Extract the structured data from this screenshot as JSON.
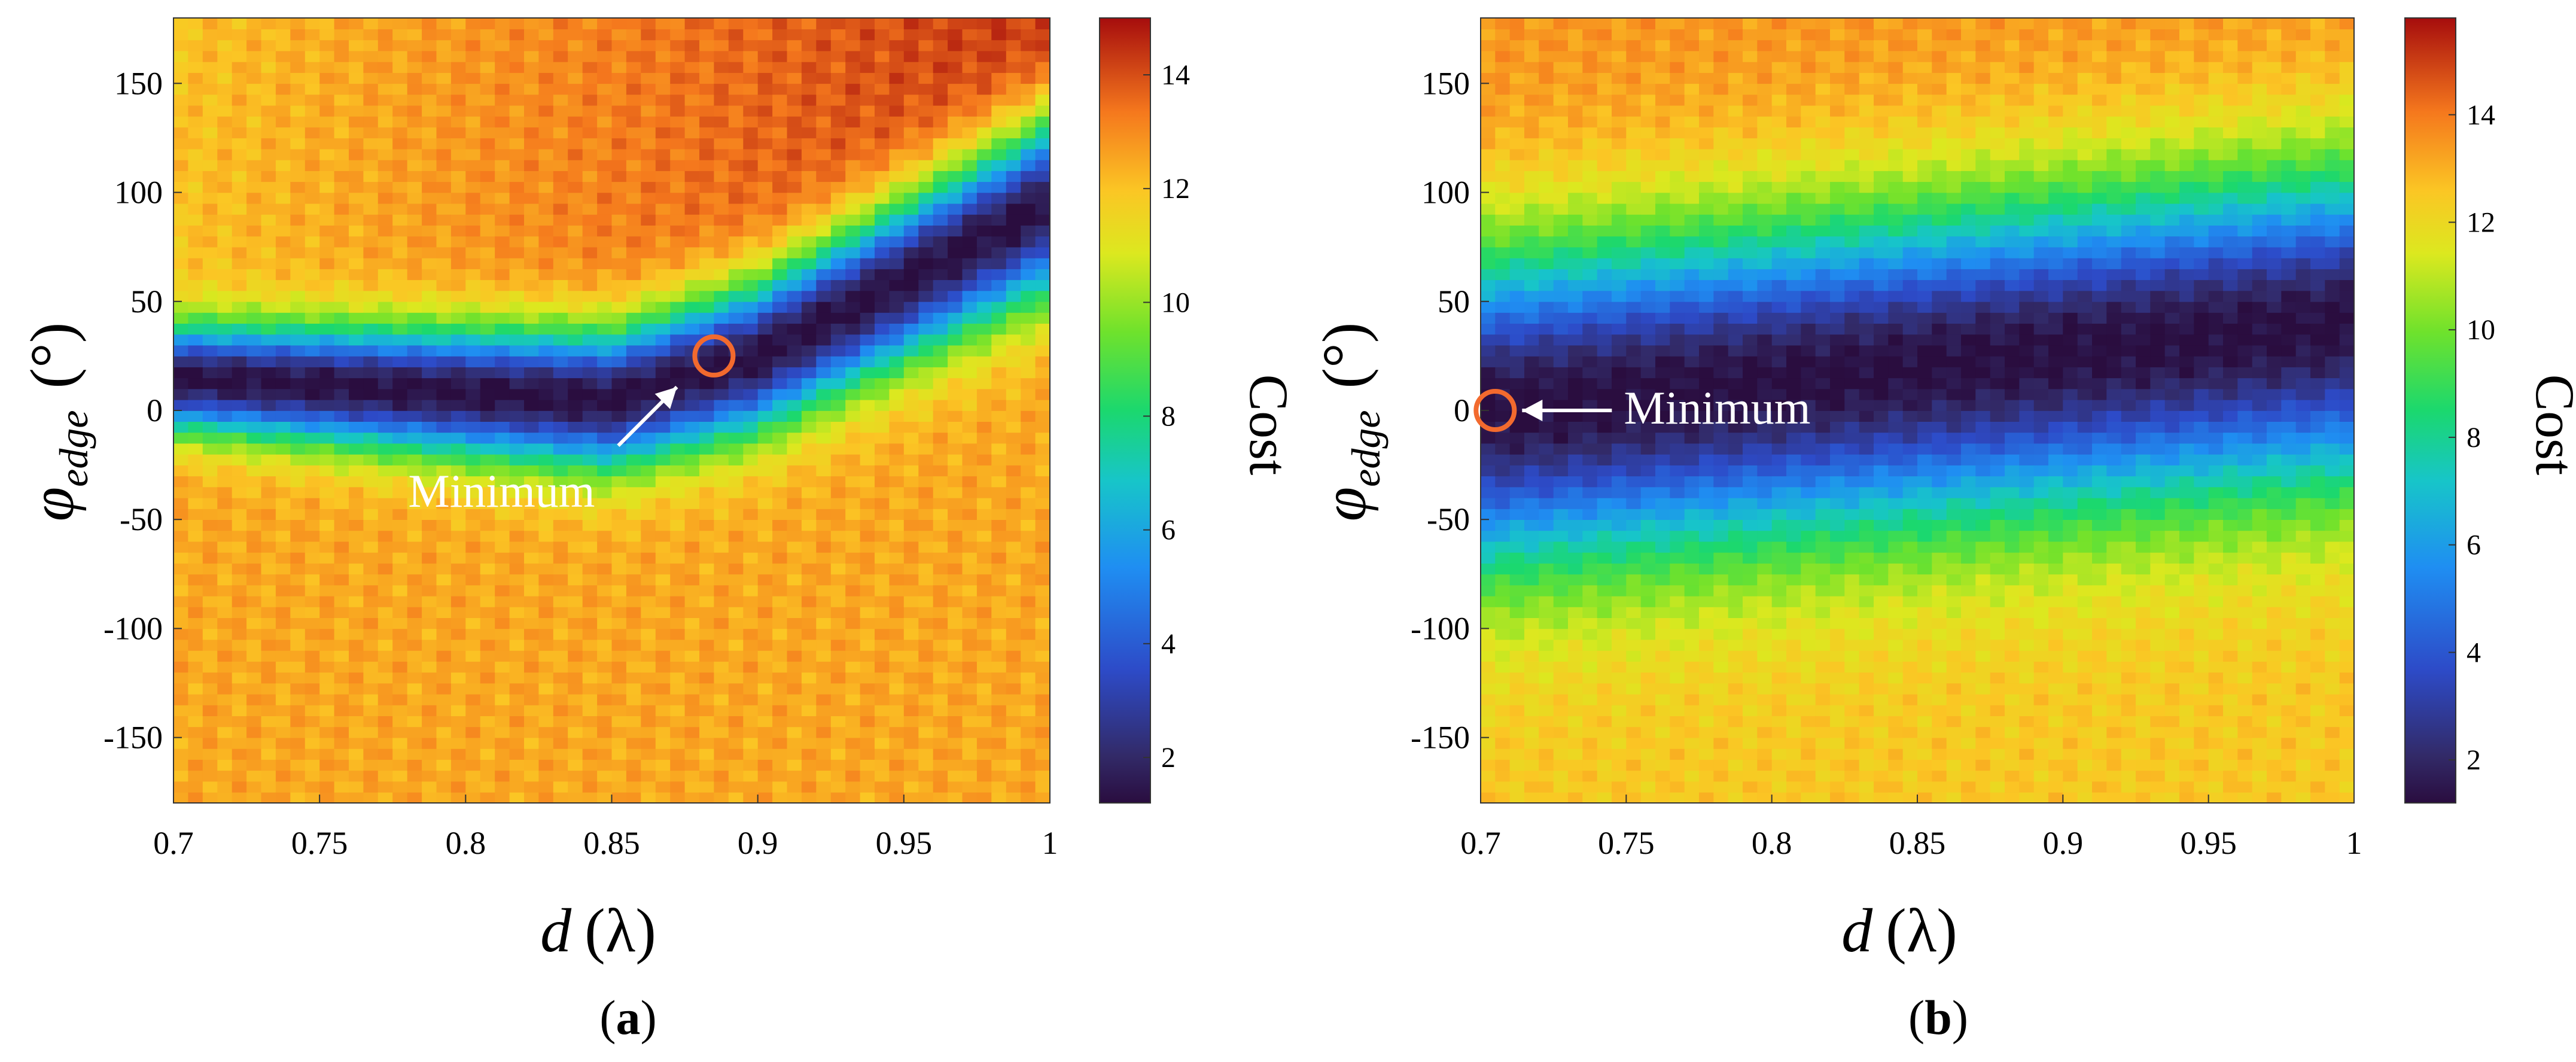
{
  "figure": {
    "panel_a_caption": {
      "open": "(",
      "letter": "a",
      "close": ")"
    },
    "panel_b_caption": {
      "open": "(",
      "letter": "b",
      "close": ")"
    }
  },
  "chart_data": [
    {
      "type": "heatmap",
      "panel": "a",
      "title": "",
      "xlabel": {
        "var": "d",
        "unit": "(λ)"
      },
      "ylabel": {
        "var": "φ",
        "sub": "edge",
        "unit": "(°)"
      },
      "xlim": [
        0.7,
        1.0
      ],
      "ylim": [
        -180,
        180
      ],
      "xticks": [
        0.7,
        0.75,
        0.8,
        0.85,
        0.9,
        0.95,
        1
      ],
      "xtick_labels": [
        "0.7",
        "0.75",
        "0.8",
        "0.85",
        "0.9",
        "0.95",
        "1"
      ],
      "yticks": [
        150,
        100,
        50,
        0,
        -50,
        -100,
        -150
      ],
      "ytick_labels": [
        "150",
        "100",
        "50",
        "0",
        "-50",
        "-100",
        "-150"
      ],
      "colorbar": {
        "label": "Cost",
        "range": [
          1.2,
          15
        ],
        "ticks": [
          14,
          12,
          10,
          8,
          6,
          4,
          2
        ],
        "tick_labels": [
          "14",
          "12",
          "10",
          "8",
          "6",
          "4",
          "2"
        ]
      },
      "valley": {
        "center_x": [
          0.7,
          0.85,
          0.9,
          1.0
        ],
        "center_y": [
          15,
          5,
          25,
          95
        ],
        "min_cost": 1.2
      },
      "minimum": {
        "x": 0.885,
        "y": 25,
        "label": "Minimum"
      }
    },
    {
      "type": "heatmap",
      "panel": "b",
      "title": "",
      "xlabel": {
        "var": "d",
        "unit": "(λ)"
      },
      "ylabel": {
        "var": "φ",
        "sub": "edge",
        "unit": "(°)"
      },
      "xlim": [
        0.7,
        1.0
      ],
      "ylim": [
        -180,
        180
      ],
      "xticks": [
        0.7,
        0.75,
        0.8,
        0.85,
        0.9,
        0.95,
        1
      ],
      "xtick_labels": [
        "0.7",
        "0.75",
        "0.8",
        "0.85",
        "0.9",
        "0.95",
        "1"
      ],
      "yticks": [
        150,
        100,
        50,
        0,
        -50,
        -100,
        -150
      ],
      "ytick_labels": [
        "150",
        "100",
        "50",
        "0",
        "-50",
        "-100",
        "-150"
      ],
      "colorbar": {
        "label": "Cost",
        "range": [
          1.2,
          15.8
        ],
        "ticks": [
          14,
          12,
          10,
          8,
          6,
          4,
          2
        ],
        "tick_labels": [
          "14",
          "12",
          "10",
          "8",
          "6",
          "4",
          "2"
        ]
      },
      "valley": {
        "center_x": [
          0.7,
          1.0
        ],
        "center_y": [
          0,
          40
        ],
        "min_cost": 1.2
      },
      "minimum": {
        "x": 0.705,
        "y": 0,
        "label": "Minimum"
      }
    }
  ]
}
